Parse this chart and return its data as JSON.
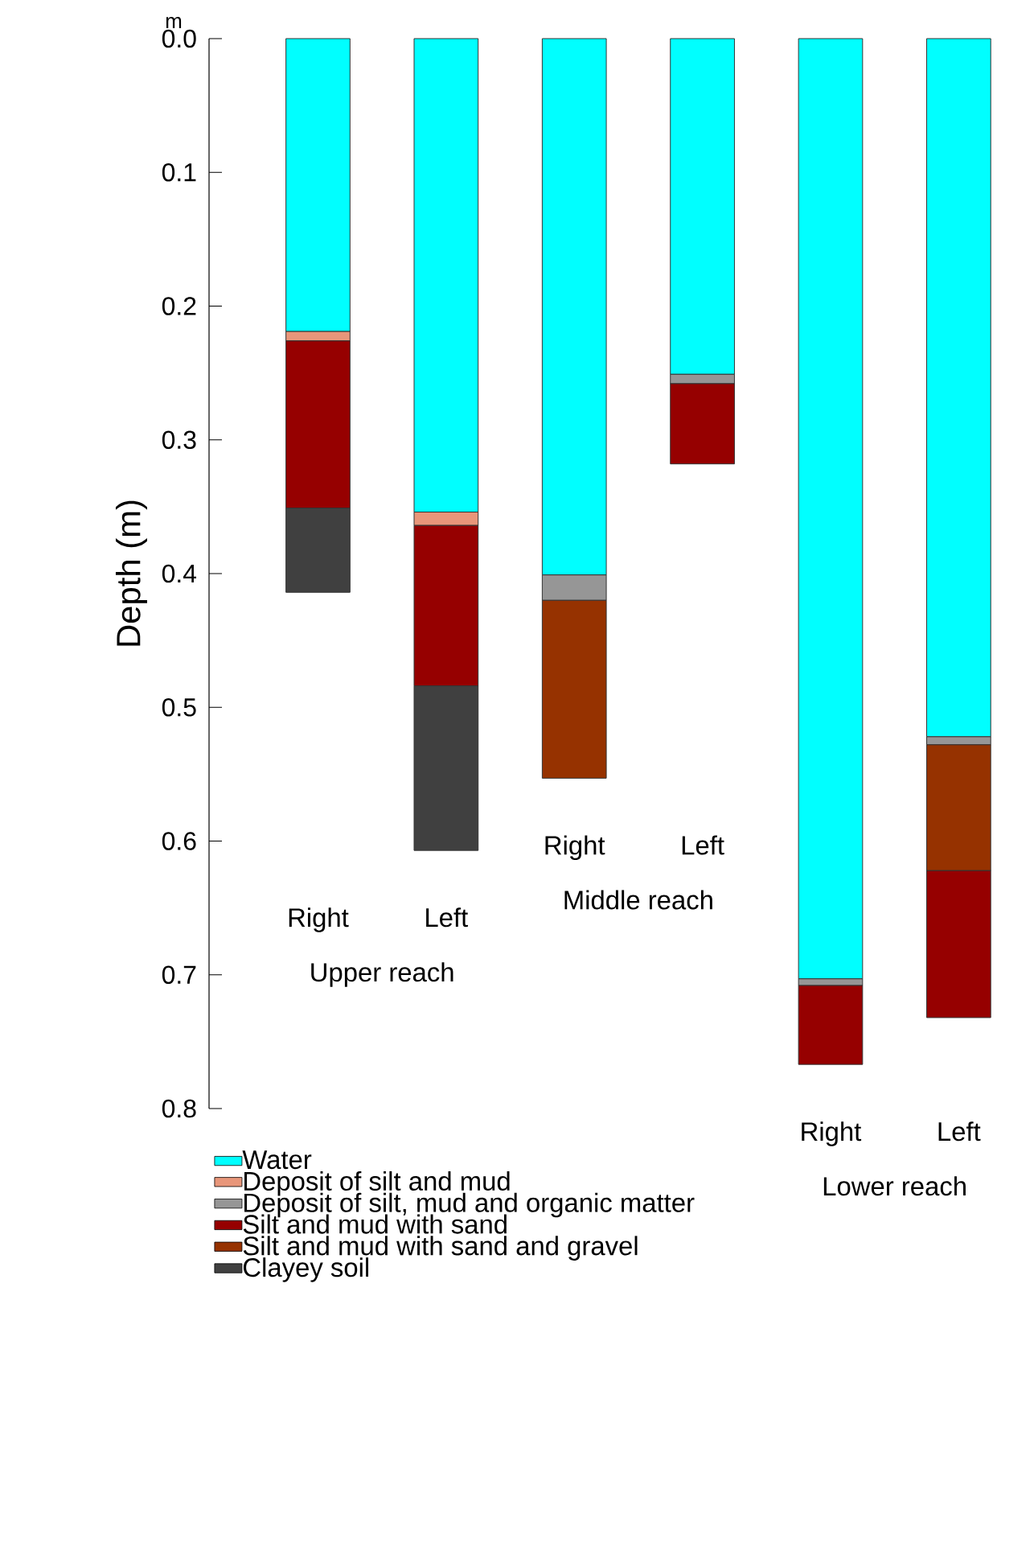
{
  "chart_data": {
    "type": "bar",
    "ylabel": "Depth (m)",
    "categories": [
      "Right",
      "Left",
      "Right",
      "Left",
      "Right",
      "Left"
    ],
    "annotations": [
      "m",
      "Upper reach",
      "Middle reach",
      "Lower reach"
    ],
    "ylim": [
      0.8,
      0
    ],
    "yticks": [
      {
        "value": 0,
        "label": "0.0"
      },
      0.1,
      0.2,
      0.3,
      0.4,
      0.5,
      0.6,
      0.7,
      0.8
    ],
    "legend": "bottom",
    "series": [
      {
        "name": "Water",
        "color": "#00ffff",
        "base": [
          0,
          0,
          0,
          0,
          0,
          0
        ],
        "values": [
          0.219,
          0.354,
          0.401,
          0.251,
          0.703,
          0.522
        ]
      },
      {
        "name": "Deposit of silt and mud",
        "color": "#e8967a",
        "base": [
          0.219,
          0.354,
          null,
          null,
          null,
          null
        ],
        "values": [
          0.007,
          0.01,
          null,
          null,
          null,
          null
        ]
      },
      {
        "name": "Deposit of silt, mud and organic matter",
        "color": "#969696",
        "base": [
          null,
          null,
          0.401,
          0.251,
          0.703,
          0.522
        ],
        "values": [
          null,
          null,
          0.019,
          0.007,
          0.005,
          0.006
        ]
      },
      {
        "name": "Silt and mud with sand",
        "color": "#960000",
        "base": [
          0.226,
          0.364,
          null,
          0.258,
          0.708,
          0.622
        ],
        "values": [
          0.125,
          0.12,
          null,
          0.06,
          0.059,
          0.11
        ]
      },
      {
        "name": "Silt and mud with sand and gravel",
        "color": "#963200",
        "base": [
          null,
          null,
          0.42,
          null,
          null,
          0.528
        ],
        "values": [
          null,
          null,
          0.133,
          null,
          null,
          0.094
        ]
      },
      {
        "name": "Clayey soil",
        "color": "#404040",
        "base": [
          0.351,
          0.484,
          null,
          null,
          null,
          null
        ],
        "values": [
          0.063,
          0.123,
          null,
          null,
          null,
          null
        ]
      }
    ]
  }
}
